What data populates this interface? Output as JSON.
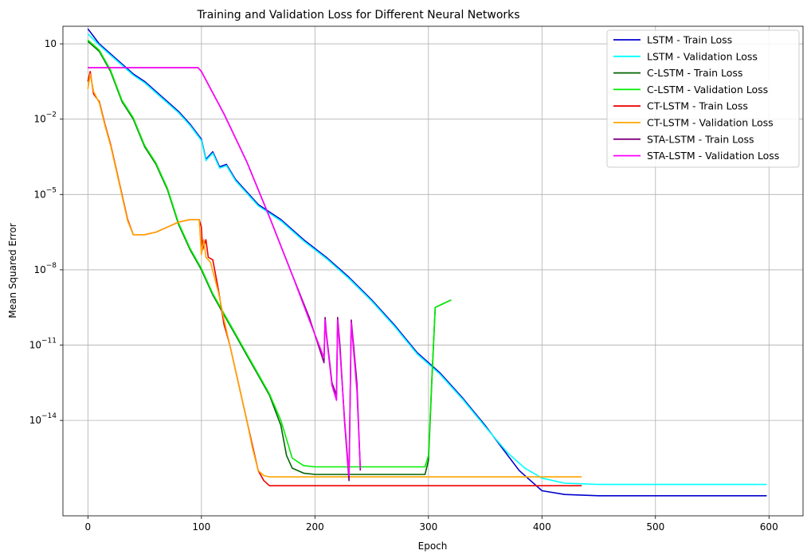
{
  "chart_data": {
    "type": "line",
    "title": "Training and Validation Loss for Different Neural Networks",
    "xlabel": "Epoch",
    "ylabel": "Mean Squared Error",
    "xlim": [
      -22,
      630
    ],
    "ylim_log10": [
      -17.8,
      1.7
    ],
    "y_scale": "log",
    "grid": true,
    "legend_position": "top-right",
    "x_ticks": [
      {
        "value": 0,
        "label": "0"
      },
      {
        "value": 100,
        "label": "100"
      },
      {
        "value": 200,
        "label": "200"
      },
      {
        "value": 300,
        "label": "300"
      },
      {
        "value": 400,
        "label": "400"
      },
      {
        "value": 500,
        "label": "500"
      },
      {
        "value": 600,
        "label": "600"
      }
    ],
    "y_ticks": [
      {
        "exp": 1,
        "base": "10",
        "sup": ""
      },
      {
        "exp": -2,
        "base": "10",
        "sup": "−2"
      },
      {
        "exp": -5,
        "base": "10",
        "sup": "−5"
      },
      {
        "exp": -8,
        "base": "10",
        "sup": "−8"
      },
      {
        "exp": -11,
        "base": "10",
        "sup": "−11"
      },
      {
        "exp": -14,
        "base": "10",
        "sup": "−14"
      }
    ],
    "series": [
      {
        "name": "LSTM - Train Loss",
        "color": "#0000cd",
        "points": [
          [
            0,
            1.6
          ],
          [
            10,
            1.0
          ],
          [
            20,
            0.6
          ],
          [
            30,
            0.2
          ],
          [
            40,
            -0.2
          ],
          [
            50,
            -0.5
          ],
          [
            60,
            -0.9
          ],
          [
            70,
            -1.3
          ],
          [
            80,
            -1.7
          ],
          [
            90,
            -2.2
          ],
          [
            100,
            -2.8
          ],
          [
            104,
            -3.6
          ],
          [
            110,
            -3.3
          ],
          [
            116,
            -3.9
          ],
          [
            122,
            -3.8
          ],
          [
            130,
            -4.4
          ],
          [
            150,
            -5.4
          ],
          [
            170,
            -6.0
          ],
          [
            190,
            -6.8
          ],
          [
            210,
            -7.5
          ],
          [
            230,
            -8.3
          ],
          [
            250,
            -9.2
          ],
          [
            270,
            -10.2
          ],
          [
            290,
            -11.3
          ],
          [
            310,
            -12.1
          ],
          [
            330,
            -13.1
          ],
          [
            350,
            -14.2
          ],
          [
            370,
            -15.4
          ],
          [
            380,
            -16.0
          ],
          [
            390,
            -16.4
          ],
          [
            400,
            -16.8
          ],
          [
            420,
            -16.95
          ],
          [
            450,
            -17.0
          ],
          [
            598,
            -17.0
          ]
        ]
      },
      {
        "name": "LSTM - Validation Loss",
        "color": "#00ffff",
        "points": [
          [
            0,
            1.4
          ],
          [
            10,
            0.95
          ],
          [
            20,
            0.55
          ],
          [
            30,
            0.15
          ],
          [
            40,
            -0.25
          ],
          [
            50,
            -0.55
          ],
          [
            60,
            -0.95
          ],
          [
            70,
            -1.35
          ],
          [
            80,
            -1.75
          ],
          [
            90,
            -2.25
          ],
          [
            100,
            -2.85
          ],
          [
            104,
            -3.65
          ],
          [
            110,
            -3.35
          ],
          [
            116,
            -3.95
          ],
          [
            122,
            -3.85
          ],
          [
            130,
            -4.45
          ],
          [
            150,
            -5.45
          ],
          [
            170,
            -6.05
          ],
          [
            190,
            -6.85
          ],
          [
            210,
            -7.55
          ],
          [
            230,
            -8.35
          ],
          [
            250,
            -9.25
          ],
          [
            270,
            -10.25
          ],
          [
            290,
            -11.35
          ],
          [
            310,
            -12.15
          ],
          [
            330,
            -13.15
          ],
          [
            350,
            -14.25
          ],
          [
            370,
            -15.3
          ],
          [
            385,
            -15.9
          ],
          [
            400,
            -16.3
          ],
          [
            420,
            -16.5
          ],
          [
            450,
            -16.55
          ],
          [
            598,
            -16.55
          ]
        ]
      },
      {
        "name": "C-LSTM - Train Loss",
        "color": "#006400",
        "points": [
          [
            0,
            1.1
          ],
          [
            10,
            0.7
          ],
          [
            20,
            -0.1
          ],
          [
            30,
            -1.3
          ],
          [
            40,
            -2.0
          ],
          [
            50,
            -3.1
          ],
          [
            60,
            -3.8
          ],
          [
            70,
            -4.8
          ],
          [
            80,
            -6.2
          ],
          [
            90,
            -7.2
          ],
          [
            100,
            -8.0
          ],
          [
            110,
            -9.0
          ],
          [
            120,
            -9.8
          ],
          [
            130,
            -10.6
          ],
          [
            140,
            -11.4
          ],
          [
            150,
            -12.2
          ],
          [
            160,
            -13.0
          ],
          [
            170,
            -14.2
          ],
          [
            175,
            -15.4
          ],
          [
            180,
            -15.9
          ],
          [
            190,
            -16.1
          ],
          [
            200,
            -16.15
          ],
          [
            297,
            -16.15
          ],
          [
            300,
            -15.6
          ],
          [
            303,
            -12.4
          ],
          [
            306,
            -9.5
          ],
          [
            320,
            -9.2
          ]
        ]
      },
      {
        "name": "C-LSTM - Validation Loss",
        "color": "#00ee00",
        "points": [
          [
            0,
            1.15
          ],
          [
            10,
            0.75
          ],
          [
            20,
            -0.05
          ],
          [
            30,
            -1.25
          ],
          [
            40,
            -1.95
          ],
          [
            50,
            -3.05
          ],
          [
            60,
            -3.75
          ],
          [
            70,
            -4.75
          ],
          [
            80,
            -6.15
          ],
          [
            90,
            -7.15
          ],
          [
            100,
            -7.95
          ],
          [
            110,
            -8.95
          ],
          [
            120,
            -9.75
          ],
          [
            130,
            -10.55
          ],
          [
            140,
            -11.35
          ],
          [
            150,
            -12.15
          ],
          [
            160,
            -12.95
          ],
          [
            170,
            -14.0
          ],
          [
            180,
            -15.5
          ],
          [
            190,
            -15.8
          ],
          [
            200,
            -15.85
          ],
          [
            297,
            -15.85
          ],
          [
            300,
            -15.4
          ],
          [
            303,
            -12.3
          ],
          [
            306,
            -9.5
          ],
          [
            320,
            -9.2
          ]
        ]
      },
      {
        "name": "CT-LSTM - Train Loss",
        "color": "#ee0000",
        "points": [
          [
            0,
            -0.5
          ],
          [
            2,
            -0.1
          ],
          [
            5,
            -1.0
          ],
          [
            10,
            -1.3
          ],
          [
            15,
            -2.2
          ],
          [
            20,
            -3.0
          ],
          [
            25,
            -4.0
          ],
          [
            30,
            -5.0
          ],
          [
            35,
            -6.0
          ],
          [
            40,
            -6.6
          ],
          [
            50,
            -6.6
          ],
          [
            60,
            -6.5
          ],
          [
            70,
            -6.3
          ],
          [
            80,
            -6.1
          ],
          [
            90,
            -6.0
          ],
          [
            98,
            -6.0
          ],
          [
            100,
            -6.3
          ],
          [
            101,
            -7.2
          ],
          [
            104,
            -6.8
          ],
          [
            106,
            -7.5
          ],
          [
            110,
            -7.6
          ],
          [
            115,
            -8.8
          ],
          [
            120,
            -10.2
          ],
          [
            122,
            -10.5
          ],
          [
            125,
            -11.0
          ],
          [
            130,
            -12.0
          ],
          [
            135,
            -13.0
          ],
          [
            140,
            -14.0
          ],
          [
            145,
            -15.0
          ],
          [
            150,
            -16.0
          ],
          [
            155,
            -16.4
          ],
          [
            160,
            -16.6
          ],
          [
            170,
            -16.6
          ],
          [
            435,
            -16.6
          ]
        ]
      },
      {
        "name": "CT-LSTM - Validation Loss",
        "color": "#ffa500",
        "points": [
          [
            0,
            -0.8
          ],
          [
            2,
            -0.2
          ],
          [
            5,
            -0.9
          ],
          [
            10,
            -1.35
          ],
          [
            15,
            -2.25
          ],
          [
            20,
            -3.05
          ],
          [
            25,
            -4.05
          ],
          [
            30,
            -5.05
          ],
          [
            35,
            -6.05
          ],
          [
            40,
            -6.6
          ],
          [
            50,
            -6.6
          ],
          [
            60,
            -6.5
          ],
          [
            70,
            -6.3
          ],
          [
            80,
            -6.1
          ],
          [
            90,
            -6.0
          ],
          [
            98,
            -6.0
          ],
          [
            100,
            -7.4
          ],
          [
            102,
            -6.8
          ],
          [
            104,
            -7.5
          ],
          [
            108,
            -7.7
          ],
          [
            115,
            -8.9
          ],
          [
            120,
            -10.0
          ],
          [
            125,
            -11.0
          ],
          [
            130,
            -12.0
          ],
          [
            135,
            -13.0
          ],
          [
            140,
            -14.0
          ],
          [
            145,
            -15.1
          ],
          [
            150,
            -16.0
          ],
          [
            155,
            -16.2
          ],
          [
            160,
            -16.25
          ],
          [
            435,
            -16.25
          ]
        ]
      },
      {
        "name": "STA-LSTM - Train Loss",
        "color": "#800080",
        "points": [
          [
            0,
            0.05
          ],
          [
            97,
            0.05
          ],
          [
            100,
            -0.1
          ],
          [
            120,
            -1.8
          ],
          [
            140,
            -3.7
          ],
          [
            160,
            -5.9
          ],
          [
            180,
            -8.2
          ],
          [
            195,
            -9.9
          ],
          [
            208,
            -11.7
          ],
          [
            209,
            -9.9
          ],
          [
            210,
            -10.5
          ],
          [
            215,
            -12.5
          ],
          [
            219,
            -13.0
          ],
          [
            220,
            -9.9
          ],
          [
            222,
            -11.0
          ],
          [
            226,
            -14.0
          ],
          [
            230,
            -16.4
          ],
          [
            232,
            -10.0
          ],
          [
            234,
            -11.0
          ],
          [
            237,
            -12.5
          ],
          [
            240,
            -16.0
          ]
        ]
      },
      {
        "name": "STA-LSTM - Validation Loss",
        "color": "#ff00ff",
        "points": [
          [
            0,
            0.05
          ],
          [
            97,
            0.05
          ],
          [
            100,
            -0.1
          ],
          [
            120,
            -1.8
          ],
          [
            140,
            -3.7
          ],
          [
            160,
            -5.9
          ],
          [
            180,
            -8.2
          ],
          [
            195,
            -10.0
          ],
          [
            208,
            -11.5
          ],
          [
            209,
            -10.0
          ],
          [
            210,
            -10.6
          ],
          [
            215,
            -12.6
          ],
          [
            219,
            -13.2
          ],
          [
            220,
            -10.0
          ],
          [
            222,
            -11.2
          ],
          [
            226,
            -13.9
          ],
          [
            230,
            -16.2
          ],
          [
            232,
            -10.1
          ],
          [
            234,
            -11.2
          ],
          [
            237,
            -12.8
          ],
          [
            240,
            -15.9
          ]
        ]
      }
    ]
  }
}
